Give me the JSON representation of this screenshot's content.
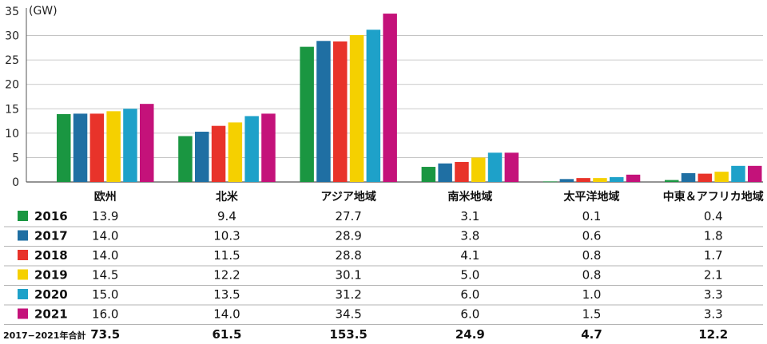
{
  "chart_data": {
    "type": "bar",
    "unit_label": "(GW)",
    "categories": [
      "欧州",
      "北米",
      "アジア地域",
      "南米地域",
      "太平洋地域",
      "中東＆アフリカ地域"
    ],
    "series": [
      {
        "name": "2016",
        "color": "#1a9641",
        "values": [
          13.9,
          9.4,
          27.7,
          3.1,
          0.1,
          0.4
        ],
        "labels": [
          "13.9",
          "9.4",
          "27.7",
          "3.1",
          "0.1",
          "0.4"
        ]
      },
      {
        "name": "2017",
        "color": "#1f6fa3",
        "values": [
          14.0,
          10.3,
          28.9,
          3.8,
          0.6,
          1.8
        ],
        "labels": [
          "14.0",
          "10.3",
          "28.9",
          "3.8",
          "0.6",
          "1.8"
        ]
      },
      {
        "name": "2018",
        "color": "#e8332a",
        "values": [
          14.0,
          11.5,
          28.8,
          4.1,
          0.8,
          1.7
        ],
        "labels": [
          "14.0",
          "11.5",
          "28.8",
          "4.1",
          "0.8",
          "1.7"
        ]
      },
      {
        "name": "2019",
        "color": "#f5d000",
        "values": [
          14.5,
          12.2,
          30.1,
          5.0,
          0.8,
          2.1
        ],
        "labels": [
          "14.5",
          "12.2",
          "30.1",
          "5.0",
          "0.8",
          "2.1"
        ]
      },
      {
        "name": "2020",
        "color": "#1ea1c9",
        "values": [
          15.0,
          13.5,
          31.2,
          6.0,
          1.0,
          3.3
        ],
        "labels": [
          "15.0",
          "13.5",
          "31.2",
          "6.0",
          "1.0",
          "3.3"
        ]
      },
      {
        "name": "2021",
        "color": "#c4127a",
        "values": [
          16.0,
          14.0,
          34.5,
          6.0,
          1.5,
          3.3
        ],
        "labels": [
          "16.0",
          "14.0",
          "34.5",
          "6.0",
          "1.5",
          "3.3"
        ]
      }
    ],
    "total_row": {
      "label": "2017−2021年合計",
      "values": [
        "73.5",
        "61.5",
        "153.5",
        "24.9",
        "4.7",
        "12.2"
      ]
    },
    "ylim": [
      0,
      35
    ],
    "yticks": [
      0,
      5,
      10,
      15,
      20,
      25,
      30,
      35
    ],
    "grid": true
  }
}
